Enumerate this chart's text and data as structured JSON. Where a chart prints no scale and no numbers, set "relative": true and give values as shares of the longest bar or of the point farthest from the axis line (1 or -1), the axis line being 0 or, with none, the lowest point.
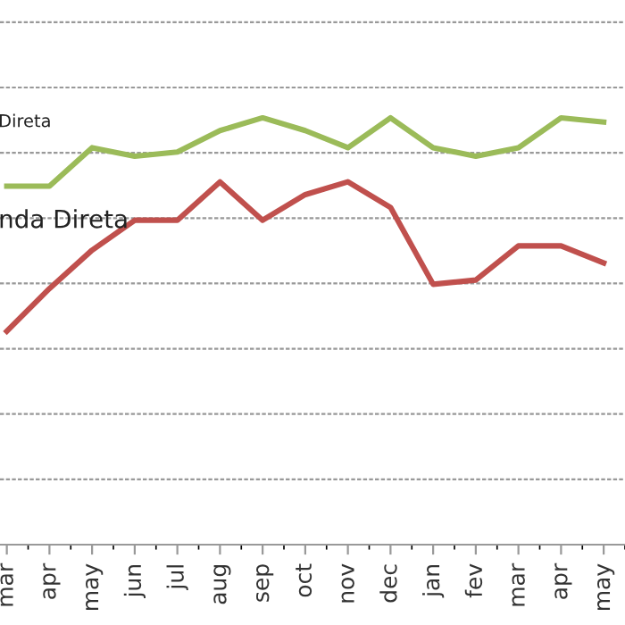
{
  "chart_data": {
    "type": "line",
    "relative": true,
    "grid": "y",
    "legend": false,
    "marker": "none",
    "line_style": "solid",
    "categories": [
      "mar",
      "apr",
      "may",
      "jun",
      "jul",
      "aug",
      "sep",
      "oct",
      "nov",
      "dec",
      "jan",
      "fev",
      "mar",
      "apr",
      "may"
    ],
    "series": [
      {
        "name": "Direta",
        "color": "#9bbb59",
        "values": [
          0.84,
          0.84,
          0.93,
          0.91,
          0.92,
          0.97,
          1.0,
          0.97,
          0.93,
          1.0,
          0.93,
          0.91,
          0.93,
          1.0,
          0.99
        ]
      },
      {
        "name": "nda Direta",
        "color": "#c0504d",
        "values": [
          0.5,
          0.6,
          0.69,
          0.76,
          0.76,
          0.85,
          0.76,
          0.82,
          0.85,
          0.79,
          0.61,
          0.62,
          0.7,
          0.7,
          0.66
        ]
      }
    ]
  }
}
